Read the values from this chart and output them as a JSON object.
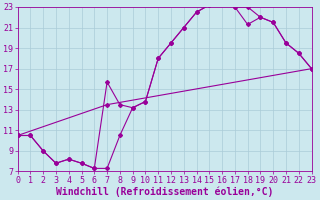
{
  "xlabel": "Windchill (Refroidissement éolien,°C)",
  "xlim": [
    0,
    23
  ],
  "ylim": [
    7,
    23
  ],
  "xticks": [
    0,
    1,
    2,
    3,
    4,
    5,
    6,
    7,
    8,
    9,
    10,
    11,
    12,
    13,
    14,
    15,
    16,
    17,
    18,
    19,
    20,
    21,
    22,
    23
  ],
  "yticks": [
    7,
    9,
    11,
    13,
    15,
    17,
    19,
    21,
    23
  ],
  "background_color": "#cce8ee",
  "grid_color": "#aaccd8",
  "line_color": "#990099",
  "line1_x": [
    0,
    1,
    2,
    3,
    4,
    5,
    6,
    7,
    8,
    9,
    10,
    11,
    12,
    13,
    14,
    15,
    16,
    17,
    18,
    19,
    20,
    21,
    22,
    23
  ],
  "line1_y": [
    10.5,
    10.5,
    9.0,
    7.8,
    8.2,
    7.8,
    7.3,
    7.3,
    10.5,
    13.2,
    13.8,
    18.0,
    19.5,
    21.0,
    22.5,
    23.2,
    23.5,
    23.0,
    23.0,
    22.0,
    21.5,
    19.5,
    18.5,
    17.0
  ],
  "line2_x": [
    0,
    1,
    2,
    3,
    4,
    5,
    6,
    7,
    8,
    9,
    10,
    11,
    12,
    13,
    14,
    15,
    16,
    17,
    18,
    19,
    20,
    21,
    22,
    23
  ],
  "line2_y": [
    10.5,
    10.5,
    9.0,
    7.8,
    8.2,
    7.8,
    7.3,
    15.7,
    13.5,
    13.2,
    13.8,
    18.0,
    19.5,
    21.0,
    22.5,
    23.2,
    23.5,
    23.0,
    21.3,
    22.0,
    21.5,
    19.5,
    18.5,
    17.0
  ],
  "line3_x": [
    0,
    7,
    23
  ],
  "line3_y": [
    10.5,
    13.5,
    17.0
  ],
  "font_size": 7,
  "tick_font_size": 6,
  "marker": "D",
  "marker_size": 2.0,
  "linewidth": 0.8
}
